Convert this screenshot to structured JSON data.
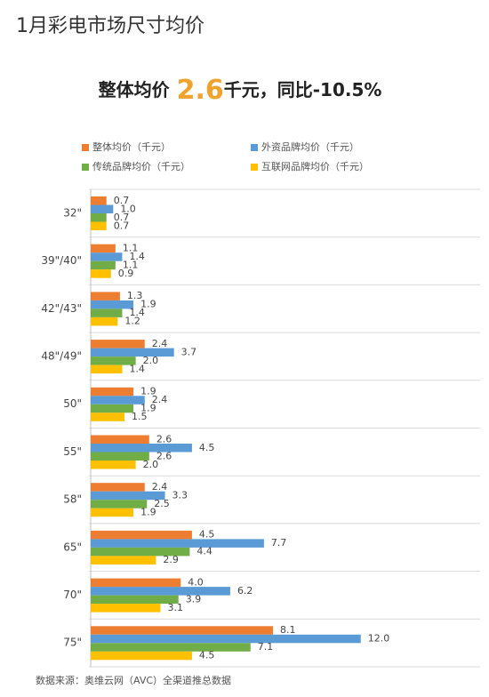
{
  "chart_data": {
    "type": "bar",
    "orientation": "horizontal",
    "title": "1月彩电市场尺寸均价",
    "headline": [
      "整体均价",
      "2.6",
      "千元，同比-10.5%"
    ],
    "source": "数据来源：奥维云网（AVC）全渠道推总数据",
    "categories": [
      "32\"",
      "39\"/40\"",
      "42\"/43\"",
      "48\"/49\"",
      "50\"",
      "55\"",
      "58\"",
      "65\"",
      "70\"",
      "75\""
    ],
    "xlim": [
      0,
      17.5
    ],
    "series": [
      {
        "name": "整体均价（千元）",
        "color": "#ED7D31",
        "values": [
          0.7,
          1.1,
          1.3,
          2.4,
          1.9,
          2.6,
          2.4,
          4.5,
          4.0,
          8.1
        ],
        "value_labels": [
          "0.7",
          "1.1",
          "1.3",
          "2.4",
          "1.9",
          "2.6",
          "2.4",
          "4.5",
          "4.0",
          "8.1"
        ]
      },
      {
        "name": "外资品牌均价（千元）",
        "color": "#5B9BD5",
        "values": [
          1.0,
          1.4,
          1.9,
          3.7,
          2.4,
          4.5,
          3.3,
          7.7,
          6.2,
          12.0
        ],
        "value_labels": [
          "1.0",
          "1.4",
          "1.9",
          "3.7",
          "2.4",
          "4.5",
          "3.3",
          "7.7",
          "6.2",
          "12.0"
        ]
      },
      {
        "name": "传统品牌均价（千元）",
        "color": "#70AD47",
        "values": [
          0.7,
          1.1,
          1.4,
          2.0,
          1.9,
          2.6,
          2.5,
          4.4,
          3.9,
          7.1
        ],
        "value_labels": [
          "0.7",
          "1.1",
          "1.4",
          "2.0",
          "1.9",
          "2.6",
          "2.5",
          "4.4",
          "3.9",
          "7.1"
        ]
      },
      {
        "name": "互联网品牌均价（千元）",
        "color": "#FFC000",
        "values": [
          0.7,
          0.9,
          1.2,
          1.4,
          1.5,
          2.0,
          1.9,
          2.9,
          3.1,
          4.5
        ],
        "value_labels": [
          "0.7",
          "0.9",
          "1.2",
          "1.4",
          "1.5",
          "2.0",
          "1.9",
          "2.9",
          "3.1",
          "4.5"
        ]
      }
    ]
  }
}
